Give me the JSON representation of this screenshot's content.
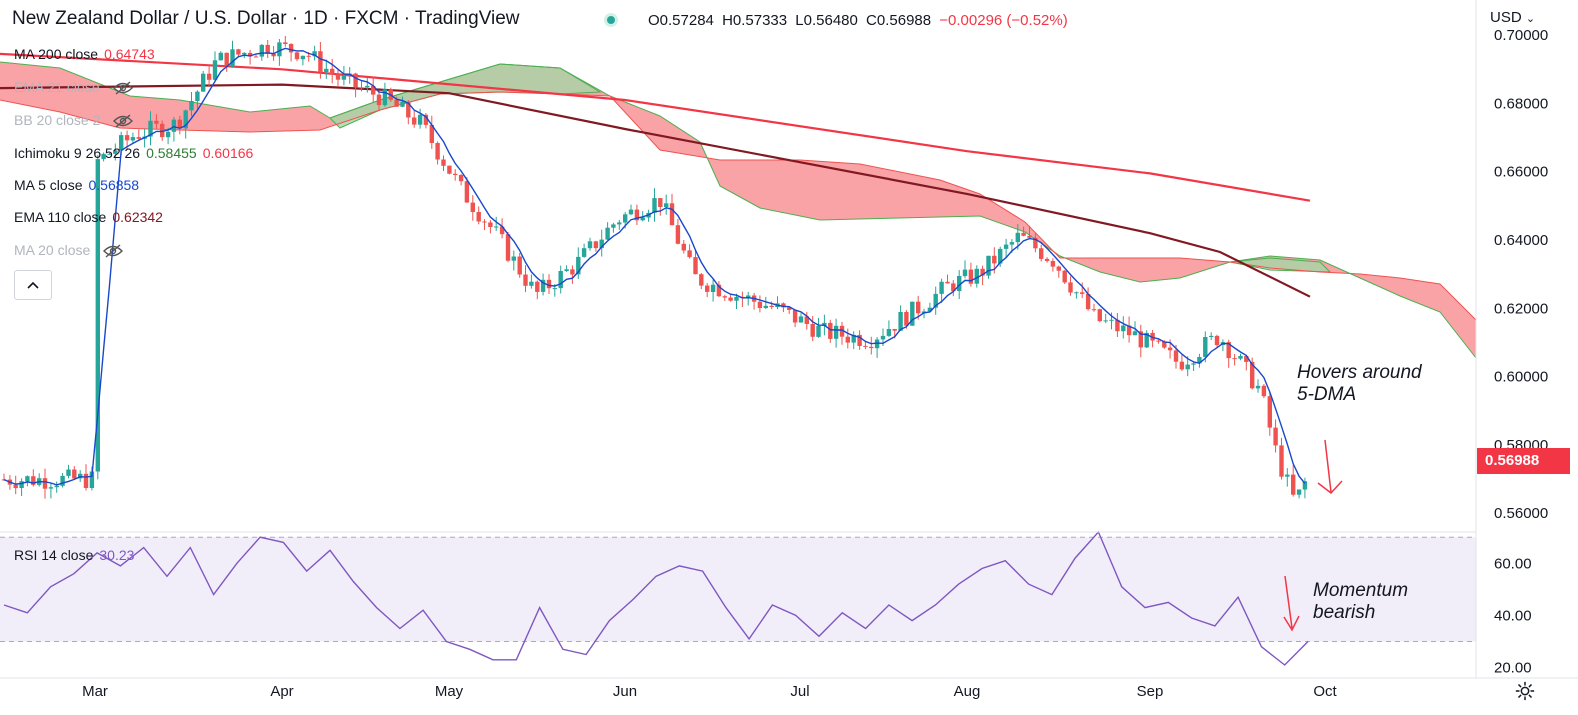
{
  "header": {
    "title": "New Zealand Dollar / U.S. Dollar · 1D · FXCM · TradingView",
    "ohlc": {
      "open": "O0.57284",
      "high": "H0.57333",
      "low": "L0.56480",
      "close": "C0.56988",
      "change": "−0.00296 (−0.52%)"
    },
    "currency": "USD",
    "currency_icon": "chevron-down-icon"
  },
  "legend": [
    {
      "label": "MA 200 close",
      "value": "0.64743",
      "color": "#f23645"
    },
    {
      "label": "EMA 21 close",
      "value": "",
      "color": "#b2b5be",
      "hidden_icon": "eye-off-icon"
    },
    {
      "label": "BB 20 close 2",
      "value": "",
      "color": "#b2b5be",
      "hidden_icon": "eye-off-icon"
    },
    {
      "label": "Ichimoku 9 26 52 26",
      "value": "0.58455",
      "value2": "0.60166",
      "color": "#2e7d32",
      "color2": "#f23645"
    },
    {
      "label": "MA 5 close",
      "value": "0.56858",
      "color": "#1848cc"
    },
    {
      "label": "EMA 110 close",
      "value": "0.62342",
      "color": "#801922"
    },
    {
      "label": "MA 20 close",
      "value": "",
      "color": "#b2b5be",
      "hidden_icon": "eye-off-icon"
    }
  ],
  "collapse_icon": "chevron-up-icon",
  "rsi_legend": {
    "label": "RSI 14 close",
    "value": "30.23",
    "color": "#7e57c2"
  },
  "last_price": "0.56988",
  "annotations": [
    {
      "text": "Hovers around",
      "text2": "5-DMA"
    },
    {
      "text": "Momentum",
      "text2": "bearish"
    }
  ],
  "colors": {
    "up": "#26a69a",
    "down": "#ef5350",
    "cloud_bull": "#a5d6a7",
    "cloud_bear": "#f77c80",
    "rsi": "#7e57c2"
  },
  "chart_data": [
    {
      "type": "candlestick",
      "title": "New Zealand Dollar / U.S. Dollar · 1D · FXCM",
      "x_ticks": [
        "Mar",
        "Apr",
        "May",
        "Jun",
        "Jul",
        "Aug",
        "Sep",
        "Oct"
      ],
      "y_ticks": [
        "0.70000",
        "0.68000",
        "0.66000",
        "0.64000",
        "0.62000",
        "0.60000",
        "0.58000",
        "0.56000"
      ],
      "ylim": [
        0.5545,
        0.7015
      ],
      "close_path": [
        [
          "Mar 01",
          0.6625
        ],
        [
          "Mar 08",
          0.671
        ],
        [
          "Mar 15",
          0.674
        ],
        [
          "Mar 22",
          0.6925
        ],
        [
          "Mar 31",
          0.697
        ],
        [
          "Apr 05",
          0.695
        ],
        [
          "Apr 11",
          0.687
        ],
        [
          "Apr 18",
          0.682
        ],
        [
          "Apr 25",
          0.674
        ],
        [
          "May 03",
          0.655
        ],
        [
          "May 09",
          0.642
        ],
        [
          "May 16",
          0.624
        ],
        [
          "May 23",
          0.633
        ],
        [
          "May 30",
          0.646
        ],
        [
          "Jun 07",
          0.652
        ],
        [
          "Jun 13",
          0.629
        ],
        [
          "Jun 20",
          0.624
        ],
        [
          "Jun 27",
          0.62
        ],
        [
          "Jul 05",
          0.613
        ],
        [
          "Jul 13",
          0.611
        ],
        [
          "Jul 20",
          0.6185
        ],
        [
          "Jul 27",
          0.627
        ],
        [
          "Aug 03",
          0.63
        ],
        [
          "Aug 10",
          0.641
        ],
        [
          "Aug 16",
          0.634
        ],
        [
          "Aug 23",
          0.617
        ],
        [
          "Aug 30",
          0.612
        ],
        [
          "Sep 06",
          0.604
        ],
        [
          "Sep 13",
          0.612
        ],
        [
          "Sep 20",
          0.596
        ],
        [
          "Sep 23",
          0.576
        ],
        [
          "Sep 26",
          0.563
        ],
        [
          "Sep 28",
          0.5699
        ]
      ],
      "series": [
        {
          "name": "MA 200 close",
          "color": "#f23645",
          "values": [
            [
              0.6945
            ],
            [
              0.69
            ],
            [
              0.681
            ],
            [
              0.666
            ],
            [
              0.6595
            ],
            [
              0.6515
            ]
          ]
        },
        {
          "name": "EMA 110 close",
          "color": "#801922",
          "values": [
            [
              0.6845
            ],
            [
              0.6855
            ],
            [
              0.683
            ],
            [
              0.6725
            ],
            [
              0.6535
            ],
            [
              0.642
            ],
            [
              0.6365
            ],
            [
              0.6234
            ]
          ]
        },
        {
          "name": "MA 5 close",
          "color": "#1848cc",
          "values": []
        },
        {
          "name": "Ichimoku 9 26 52 26",
          "color": "#2e7d32",
          "values": []
        }
      ]
    },
    {
      "type": "line",
      "title": "RSI 14 close",
      "y_ticks": [
        "60.00",
        "40.00",
        "20.00"
      ],
      "ylim": [
        16,
        72
      ],
      "bands": [
        30,
        70
      ],
      "series": [
        {
          "name": "RSI 14 close",
          "color": "#7e57c2",
          "values": [
            44,
            41,
            51,
            56,
            64,
            59,
            66,
            55,
            66,
            48,
            60,
            70,
            68,
            57,
            65,
            53,
            43,
            35,
            42,
            30,
            27,
            23,
            23,
            43,
            27,
            25,
            38,
            46,
            55,
            59,
            57,
            43,
            31,
            44,
            40,
            32,
            41,
            35,
            44,
            38,
            44,
            52,
            58,
            61,
            52,
            48,
            62,
            72,
            51,
            43,
            45,
            39,
            36,
            47,
            28,
            21,
            30
          ]
        }
      ]
    }
  ]
}
